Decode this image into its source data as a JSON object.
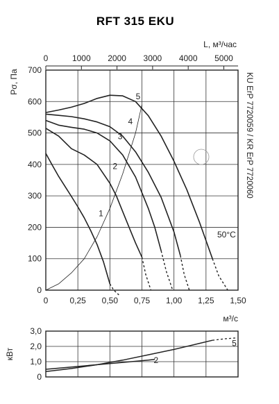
{
  "chart_data": [
    {
      "type": "line",
      "title": "RFT 315 EKU",
      "ylabel": "Pσ, Па",
      "xlabel": "м³/с",
      "x2label": "L, м³/час",
      "side_label": "KU ErP 7720059 / KR ErP 7720060",
      "temp_label": "50°C",
      "xlim": [
        0,
        1.5
      ],
      "ylim": [
        0,
        700
      ],
      "x2lim": [
        0,
        5400
      ],
      "grid": true,
      "x_ticks": [
        "0",
        "0,25",
        "0,50",
        "0,75",
        "1,00",
        "1,25",
        "1,50"
      ],
      "x_tick_values": [
        0,
        0.25,
        0.5,
        0.75,
        1.0,
        1.25,
        1.5
      ],
      "y_ticks": [
        "0",
        "100",
        "200",
        "300",
        "400",
        "500",
        "600",
        "700"
      ],
      "y_tick_values": [
        0,
        100,
        200,
        300,
        400,
        500,
        600,
        700
      ],
      "x2_ticks": [
        "0",
        "1000",
        "2000",
        "3000",
        "4000",
        "5000"
      ],
      "x2_tick_values": [
        0,
        1000,
        2000,
        3000,
        4000,
        5000
      ],
      "series": [
        {
          "name": "1",
          "x": [
            0,
            0.05,
            0.1,
            0.15,
            0.2,
            0.25,
            0.3,
            0.35,
            0.4,
            0.45,
            0.5
          ],
          "y": [
            435,
            398,
            362,
            330,
            298,
            265,
            230,
            190,
            145,
            90,
            20
          ],
          "dashed_x": [
            0.5,
            0.53,
            0.57
          ],
          "dashed_y": [
            20,
            0,
            -15
          ],
          "label_at": [
            0.43,
            235
          ]
        },
        {
          "name": "2",
          "x": [
            0,
            0.1,
            0.2,
            0.3,
            0.4,
            0.5,
            0.55,
            0.6,
            0.65,
            0.7,
            0.75
          ],
          "y": [
            515,
            490,
            450,
            430,
            400,
            340,
            300,
            250,
            200,
            150,
            105
          ],
          "dashed_x": [
            0.75,
            0.78,
            0.82
          ],
          "dashed_y": [
            105,
            50,
            0
          ],
          "label_at": [
            0.54,
            385
          ]
        },
        {
          "name": "3",
          "x": [
            0,
            0.1,
            0.2,
            0.3,
            0.4,
            0.5,
            0.6,
            0.7,
            0.75,
            0.8,
            0.85,
            0.9
          ],
          "y": [
            540,
            525,
            518,
            512,
            500,
            475,
            430,
            360,
            310,
            260,
            200,
            125
          ],
          "dashed_x": [
            0.9,
            0.94,
            0.99
          ],
          "dashed_y": [
            125,
            60,
            0
          ],
          "label_at": [
            0.58,
            480
          ]
        },
        {
          "name": "4",
          "x": [
            0,
            0.1,
            0.2,
            0.3,
            0.4,
            0.5,
            0.6,
            0.7,
            0.8,
            0.9,
            1.0,
            1.05
          ],
          "y": [
            560,
            556,
            552,
            545,
            535,
            520,
            490,
            440,
            375,
            295,
            185,
            110
          ],
          "dashed_x": [
            1.05,
            1.08,
            1.12
          ],
          "dashed_y": [
            110,
            50,
            0
          ],
          "label_at": [
            0.66,
            528
          ]
        },
        {
          "name": "5",
          "x": [
            0,
            0.1,
            0.2,
            0.3,
            0.4,
            0.5,
            0.6,
            0.7,
            0.8,
            0.9,
            1.0,
            1.1,
            1.2,
            1.3
          ],
          "y": [
            565,
            573,
            582,
            594,
            610,
            620,
            618,
            600,
            555,
            490,
            410,
            320,
            215,
            100
          ],
          "dashed_x": [
            1.3,
            1.35,
            1.42
          ],
          "dashed_y": [
            100,
            45,
            0
          ],
          "label_at": [
            0.72,
            607
          ]
        },
        {
          "name": "system",
          "x": [
            0,
            0.1,
            0.2,
            0.3,
            0.4,
            0.5,
            0.6,
            0.7,
            0.75
          ],
          "y": [
            0,
            20,
            55,
            100,
            170,
            260,
            370,
            500,
            590
          ],
          "thin": true
        }
      ]
    },
    {
      "type": "line",
      "ylabel": "кВт",
      "xlim": [
        0,
        1.5
      ],
      "ylim": [
        0,
        3
      ],
      "y_ticks": [
        "0",
        "1,0",
        "2,0",
        "3,0"
      ],
      "y_tick_values": [
        0,
        1,
        2,
        3
      ],
      "grid": true,
      "series": [
        {
          "name": "2",
          "x": [
            0,
            0.2,
            0.4,
            0.6,
            0.8,
            0.85
          ],
          "y": [
            0.5,
            0.65,
            0.8,
            0.95,
            1.1,
            1.15
          ],
          "label_at": [
            0.86,
            1.1
          ]
        },
        {
          "name": "5",
          "x": [
            0,
            0.2,
            0.4,
            0.6,
            0.8,
            1.0,
            1.2,
            1.3
          ],
          "y": [
            0.35,
            0.55,
            0.8,
            1.1,
            1.45,
            1.8,
            2.2,
            2.4
          ],
          "dashed_x": [
            1.3,
            1.4,
            1.48
          ],
          "dashed_y": [
            2.4,
            2.5,
            2.55
          ],
          "label_at": [
            1.47,
            2.2
          ]
        }
      ]
    }
  ]
}
